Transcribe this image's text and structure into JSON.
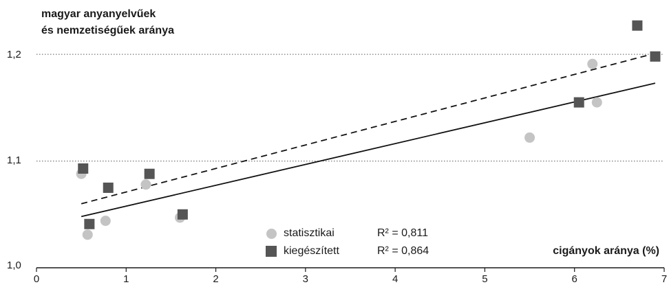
{
  "chart_data": {
    "type": "scatter",
    "ylabel_lines": [
      "magyar anyanyelvűek",
      "és nemzetiségűek aránya"
    ],
    "xlabel": "cigányok aránya (%)",
    "xlim": [
      0,
      7
    ],
    "ylim": [
      1.0,
      1.24
    ],
    "x_ticks": [
      "0",
      "1",
      "2",
      "3",
      "4",
      "5",
      "6",
      "7"
    ],
    "y_ticks": [
      "1,0",
      "1,1",
      "1,2"
    ],
    "gridlines_y": [
      1.1,
      1.2
    ],
    "series": [
      {
        "name": "statisztikai",
        "marker": "circle",
        "color": "#c4c4c4",
        "r2_label": "R² = 0,811",
        "points": [
          [
            0.5,
            1.088
          ],
          [
            0.57,
            1.031
          ],
          [
            0.77,
            1.044
          ],
          [
            1.22,
            1.078
          ],
          [
            1.6,
            1.047
          ],
          [
            5.5,
            1.122
          ],
          [
            6.2,
            1.191
          ],
          [
            6.25,
            1.155
          ]
        ],
        "trend": {
          "style": "solid",
          "from": [
            0.5,
            1.048
          ],
          "to": [
            6.9,
            1.173
          ]
        }
      },
      {
        "name": "kiegészített",
        "marker": "square",
        "color": "#555555",
        "r2_label": "R² = 0,864",
        "points": [
          [
            0.52,
            1.093
          ],
          [
            0.59,
            1.041
          ],
          [
            0.8,
            1.075
          ],
          [
            1.26,
            1.088
          ],
          [
            1.63,
            1.05
          ],
          [
            6.05,
            1.155
          ],
          [
            6.7,
            1.227
          ],
          [
            6.9,
            1.198
          ]
        ],
        "trend": {
          "style": "dashed",
          "from": [
            0.5,
            1.06
          ],
          "to": [
            6.9,
            1.201
          ]
        }
      }
    ]
  }
}
